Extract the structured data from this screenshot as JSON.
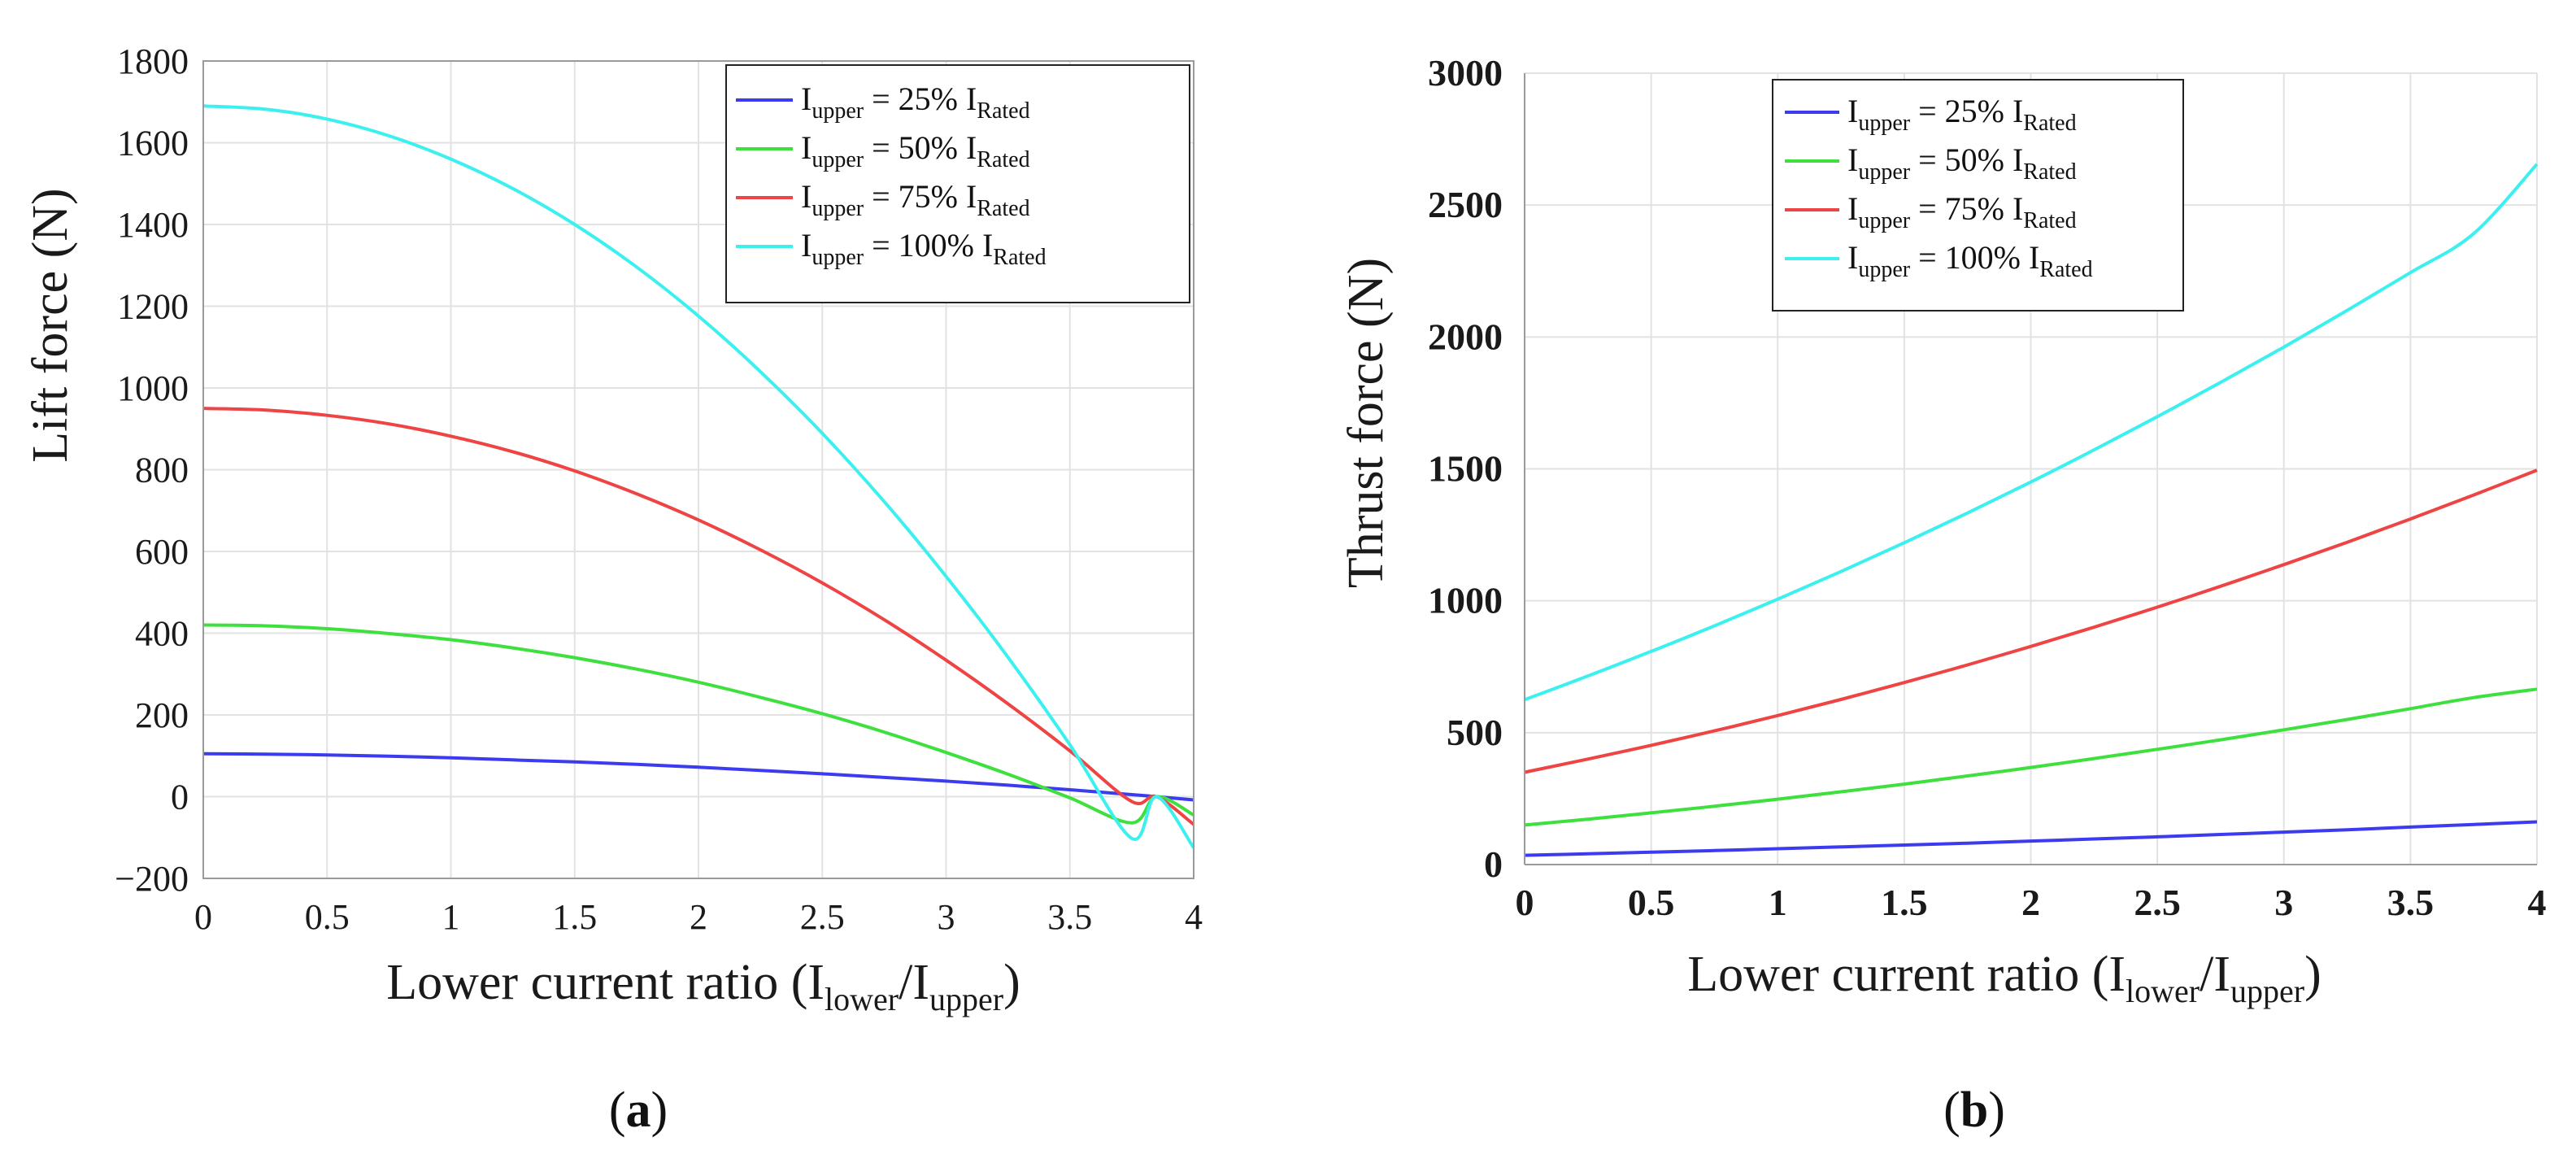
{
  "chart_data": [
    {
      "id": "a",
      "type": "line",
      "caption_open": "(",
      "caption_letter": "a",
      "caption_close": ")",
      "ylabel": "Lift force (N)",
      "xlabel": {
        "prefix": "Lower current ratio (I",
        "sub1": "lower",
        "mid": "/I",
        "sub2": "upper",
        "suffix": ")"
      },
      "xlim": [
        0,
        4
      ],
      "ylim": [
        -200,
        1800
      ],
      "xticks": [
        0,
        0.5,
        1,
        1.5,
        2,
        2.5,
        3,
        3.5,
        4
      ],
      "yticks": [
        -200,
        0,
        200,
        400,
        600,
        800,
        1000,
        1200,
        1400,
        1600,
        1800
      ],
      "xtick_labels": [
        "0",
        "0.5",
        "1",
        "1.5",
        "2",
        "2.5",
        "3",
        "3.5",
        "4"
      ],
      "ytick_labels": [
        "−200",
        "0",
        "200",
        "400",
        "600",
        "800",
        "1000",
        "1200",
        "1400",
        "1600",
        "1800"
      ],
      "grid": true,
      "legend_position": "top-right",
      "x": [
        0,
        0.25,
        0.5,
        0.75,
        1,
        1.25,
        1.5,
        1.75,
        2,
        2.25,
        2.5,
        2.75,
        3,
        3.25,
        3.5,
        3.75,
        3.85,
        4
      ],
      "series": [
        {
          "name": "Iupper = 25% IRated",
          "legend": {
            "lead": "I",
            "sub": "upper",
            "mid": " = 25% I",
            "sub2": "Rated"
          },
          "color": "#3b3bf0",
          "values": [
            105,
            104,
            102,
            99,
            95,
            90,
            85,
            79,
            72,
            64,
            56,
            47,
            38,
            28,
            17,
            5,
            0,
            -8
          ]
        },
        {
          "name": "Iupper = 50% IRated",
          "legend": {
            "lead": "I",
            "sub": "upper",
            "mid": " = 50% I",
            "sub2": "Rated"
          },
          "color": "#3de03d",
          "values": [
            420,
            418,
            411,
            399,
            384,
            364,
            340,
            312,
            280,
            243,
            203,
            158,
            108,
            55,
            -3,
            -64,
            0,
            -45
          ]
        },
        {
          "name": "Iupper = 75% IRated",
          "legend": {
            "lead": "I",
            "sub": "upper",
            "mid": " = 75% I",
            "sub2": "Rated"
          },
          "color": "#ef4444",
          "values": [
            950,
            946,
            933,
            912,
            882,
            844,
            797,
            741,
            677,
            604,
            523,
            433,
            334,
            227,
            112,
            -12,
            0,
            -68
          ]
        },
        {
          "name": "Iupper = 100% IRated",
          "legend": {
            "lead": "I",
            "sub": "upper",
            "mid": " = 100% I",
            "sub2": "Rated"
          },
          "color": "#3df0f0",
          "values": [
            1690,
            1682,
            1658,
            1617,
            1560,
            1488,
            1400,
            1296,
            1176,
            1040,
            889,
            722,
            539,
            341,
            127,
            -102,
            0,
            -125
          ]
        }
      ]
    },
    {
      "id": "b",
      "type": "line",
      "caption_open": "(",
      "caption_letter": "b",
      "caption_close": ")",
      "ylabel": "Thrust force (N)",
      "xlabel": {
        "prefix": "Lower current ratio (I",
        "sub1": "lower",
        "mid": "/I",
        "sub2": "upper",
        "suffix": ")"
      },
      "xlim": [
        0,
        4
      ],
      "ylim": [
        0,
        3000
      ],
      "xticks": [
        0,
        0.5,
        1,
        1.5,
        2,
        2.5,
        3,
        3.5,
        4
      ],
      "yticks": [
        0,
        500,
        1000,
        1500,
        2000,
        2500,
        3000
      ],
      "xtick_labels": [
        "0",
        "0.5",
        "1",
        "1.5",
        "2",
        "2.5",
        "3",
        "3.5",
        "4"
      ],
      "ytick_labels": [
        "0",
        "500",
        "1000",
        "1500",
        "2000",
        "2500",
        "3000"
      ],
      "grid": true,
      "legend_position": "top-left",
      "x": [
        0,
        0.25,
        0.5,
        0.75,
        1,
        1.25,
        1.5,
        1.75,
        2,
        2.25,
        2.5,
        2.75,
        3,
        3.25,
        3.5,
        3.75,
        4
      ],
      "series": [
        {
          "name": "Iupper = 25% IRated",
          "legend": {
            "lead": "I",
            "sub": "upper",
            "mid": " = 25% I",
            "sub2": "Rated"
          },
          "color": "#3b3bf0",
          "values": [
            35,
            41,
            47,
            53,
            60,
            67,
            74,
            81,
            89,
            97,
            105,
            114,
            123,
            132,
            142,
            152,
            162
          ]
        },
        {
          "name": "Iupper = 50% IRated",
          "legend": {
            "lead": "I",
            "sub": "upper",
            "mid": " = 50% I",
            "sub2": "Rated"
          },
          "color": "#3de03d",
          "values": [
            150,
            172,
            196,
            221,
            248,
            276,
            305,
            336,
            368,
            402,
            437,
            473,
            511,
            550,
            591,
            633,
            665
          ]
        },
        {
          "name": "Iupper = 75% IRated",
          "legend": {
            "lead": "I",
            "sub": "upper",
            "mid": " = 75% I",
            "sub2": "Rated"
          },
          "color": "#ef4444",
          "values": [
            350,
            400,
            452,
            507,
            565,
            626,
            690,
            757,
            827,
            900,
            976,
            1055,
            1137,
            1222,
            1310,
            1401,
            1495
          ]
        },
        {
          "name": "Iupper = 100% IRated",
          "legend": {
            "lead": "I",
            "sub": "upper",
            "mid": " = 100% I",
            "sub2": "Rated"
          },
          "color": "#3df0f0",
          "values": [
            625,
            715,
            808,
            905,
            1006,
            1111,
            1220,
            1333,
            1450,
            1572,
            1698,
            1828,
            1962,
            2101,
            2244,
            2392,
            2655
          ]
        }
      ]
    }
  ]
}
